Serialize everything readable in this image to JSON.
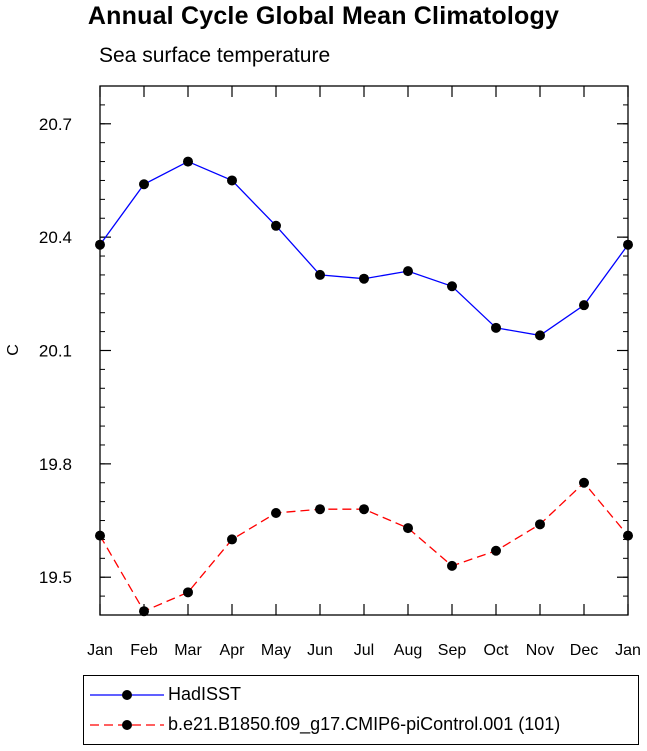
{
  "title": "Annual Cycle Global Mean Climatology",
  "subtitle": "Sea surface temperature",
  "chart_data": {
    "type": "line",
    "title": "Annual Cycle Global Mean Climatology",
    "subtitle": "Sea surface temperature",
    "xlabel": "",
    "ylabel": "C",
    "categories": [
      "Jan",
      "Feb",
      "Mar",
      "Apr",
      "May",
      "Jun",
      "Jul",
      "Aug",
      "Sep",
      "Oct",
      "Nov",
      "Dec",
      "Jan"
    ],
    "ylim": [
      19.4,
      20.8
    ],
    "yticks": [
      19.5,
      19.8,
      20.1,
      20.4,
      20.7
    ],
    "ytick_labels": [
      "19.5",
      "19.8",
      "20.1",
      "20.4",
      "20.7"
    ],
    "grid": false,
    "legend_position": "bottom",
    "series": [
      {
        "name": "HadISST",
        "color": "#0000ff",
        "dash": "solid",
        "values": [
          20.38,
          20.54,
          20.6,
          20.55,
          20.43,
          20.3,
          20.29,
          20.31,
          20.27,
          20.16,
          20.14,
          20.22,
          20.38
        ]
      },
      {
        "name": "b.e21.B1850.f09_g17.CMIP6-piControl.001 (101)",
        "color": "#ff0000",
        "dash": "dashed",
        "values": [
          19.61,
          19.41,
          19.46,
          19.6,
          19.67,
          19.68,
          19.68,
          19.63,
          19.53,
          19.57,
          19.64,
          19.75,
          19.61
        ]
      }
    ]
  }
}
